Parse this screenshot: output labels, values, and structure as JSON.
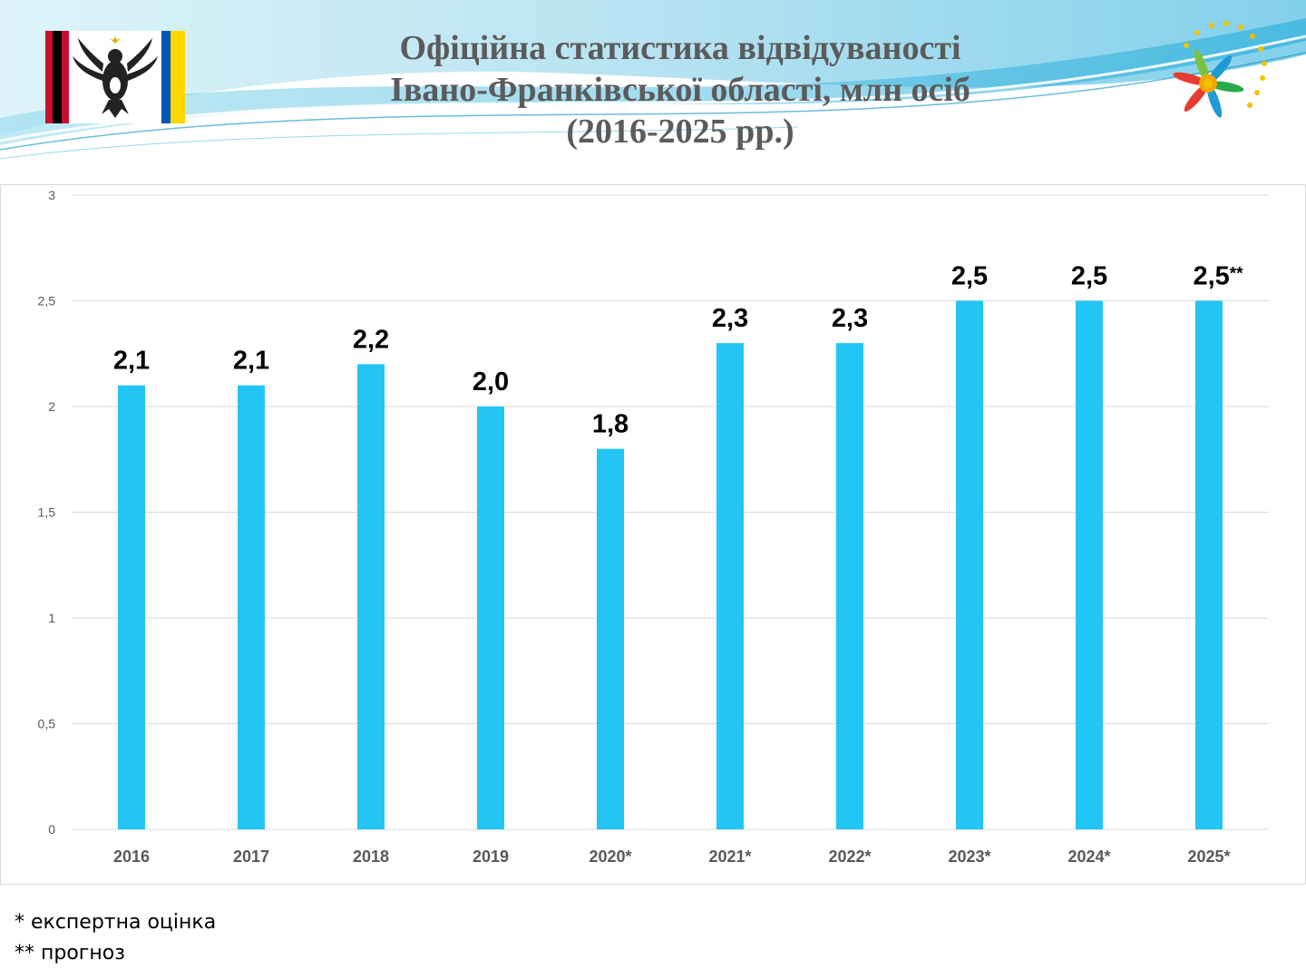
{
  "slide": {
    "title_lines": [
      "Офіційна статистика відвідуваності",
      "Івано-Франківської області, млн осіб",
      "(2016-2025 рр.)"
    ],
    "footnotes": [
      "*  експертна оцінка",
      "** прогноз"
    ],
    "colors": {
      "bar": "#22c5f3",
      "title": "#5b5b5b",
      "grid": "#d9d9d9"
    },
    "icons": {
      "emblem": "regional-coat-of-arms-icon",
      "logo": "edelweiss-star-logo-icon"
    }
  },
  "chart_data": {
    "type": "bar",
    "categories": [
      "2016",
      "2017",
      "2018",
      "2019",
      "2020*",
      "2021*",
      "2022*",
      "2023*",
      "2024*",
      "2025*"
    ],
    "values": [
      2.1,
      2.1,
      2.2,
      2.0,
      1.8,
      2.3,
      2.3,
      2.5,
      2.5,
      2.5
    ],
    "data_labels": [
      "2,1",
      "2,1",
      "2,2",
      "2,0",
      "1,8",
      "2,3",
      "2,3",
      "2,5",
      "2,5",
      "2,5"
    ],
    "last_label_suffix": "**",
    "y_ticks": [
      "0",
      "0,5",
      "1",
      "1,5",
      "2",
      "2,5",
      "3"
    ],
    "ylim": [
      0,
      3
    ],
    "grid": true,
    "legend": "none"
  }
}
